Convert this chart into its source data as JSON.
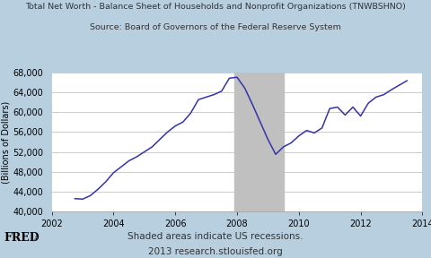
{
  "title_line1": "Total Net Worth - Balance Sheet of Households and Nonprofit Organizations (TNWBSHNO)",
  "title_line2": "Source: Board of Governors of the Federal Reserve System",
  "ylabel": "(Billions of Dollars)",
  "footer_line1": "Shaded areas indicate US recessions.",
  "footer_line2": "2013 research.stlouisfed.org",
  "xlim": [
    2002,
    2014
  ],
  "ylim": [
    40000,
    68000
  ],
  "yticks": [
    40000,
    44000,
    48000,
    52000,
    56000,
    60000,
    64000,
    68000
  ],
  "xticks": [
    2002,
    2004,
    2006,
    2008,
    2010,
    2012,
    2014
  ],
  "recession_start": 2007.92,
  "recession_end": 2009.5,
  "recession_color": "#c0c0c0",
  "line_color": "#3333aa",
  "figure_bg_color": "#b8cfe0",
  "plot_bg_color": "#ffffff",
  "grid_color": "#cccccc",
  "data_x": [
    2002.75,
    2003.0,
    2003.25,
    2003.5,
    2003.75,
    2004.0,
    2004.25,
    2004.5,
    2004.75,
    2005.0,
    2005.25,
    2005.5,
    2005.75,
    2006.0,
    2006.25,
    2006.5,
    2006.75,
    2007.0,
    2007.25,
    2007.5,
    2007.75,
    2008.0,
    2008.25,
    2008.5,
    2008.75,
    2009.0,
    2009.25,
    2009.5,
    2009.75,
    2010.0,
    2010.25,
    2010.5,
    2010.75,
    2011.0,
    2011.25,
    2011.5,
    2011.75,
    2012.0,
    2012.25,
    2012.5,
    2012.75,
    2013.0,
    2013.25,
    2013.5
  ],
  "data_y": [
    42600,
    42500,
    43200,
    44500,
    46000,
    47800,
    49000,
    50200,
    51000,
    52000,
    53000,
    54500,
    56000,
    57200,
    58000,
    59800,
    62500,
    63000,
    63500,
    64200,
    66800,
    67000,
    64800,
    61500,
    58000,
    54500,
    51500,
    53000,
    53800,
    55200,
    56300,
    55800,
    56800,
    60700,
    61000,
    59400,
    61000,
    59200,
    61800,
    63000,
    63500,
    64500,
    65400,
    66300
  ],
  "title_fontsize": 6.8,
  "label_fontsize": 7,
  "tick_fontsize": 7,
  "footer_fontsize": 7.5
}
